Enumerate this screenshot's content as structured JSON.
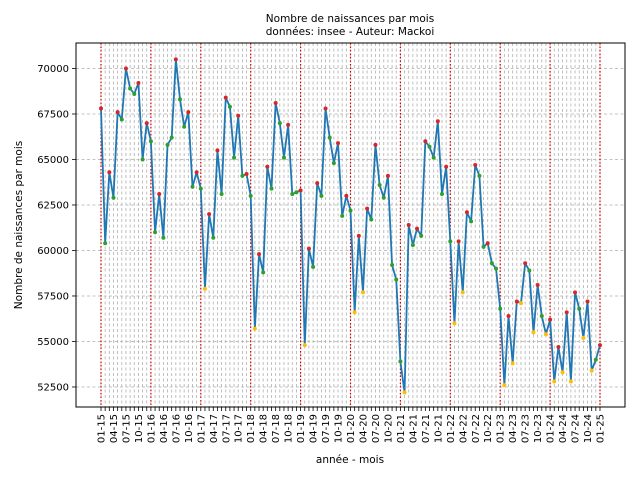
{
  "chart_data": {
    "type": "line",
    "title": "Nombre de naissances par mois",
    "subtitle": "données: insee - Auteur: Mackoi",
    "xlabel": "année - mois",
    "ylabel": "Nombre de naissances par mois",
    "ylim": [
      51400,
      71400
    ],
    "yticks": [
      52500,
      55000,
      57500,
      60000,
      62500,
      65000,
      67500,
      70000
    ],
    "ytick_labels": [
      "52500",
      "55000",
      "57500",
      "60000",
      "62500",
      "65000",
      "67500",
      "70000"
    ],
    "xtick_labels": [
      "01-15",
      "04-15",
      "07-15",
      "10-15",
      "01-16",
      "04-16",
      "07-16",
      "10-16",
      "01-17",
      "04-17",
      "07-17",
      "10-17",
      "01-18",
      "04-18",
      "07-18",
      "10-18",
      "01-19",
      "04-19",
      "07-19",
      "10-19",
      "01-20",
      "04-20",
      "07-20",
      "10-20",
      "01-21",
      "04-21",
      "07-21",
      "10-21",
      "01-22",
      "04-22",
      "07-22",
      "10-22",
      "01-23",
      "04-23",
      "07-23",
      "10-23",
      "01-24",
      "04-24",
      "07-24",
      "10-24",
      "01-25"
    ],
    "grid": true,
    "line_color": "#1f77b4",
    "year_line_color": "#e00000",
    "marker_colors": {
      "high": "#d62728",
      "mid": "#2ca02c",
      "low": "#ffbf00"
    },
    "series": [
      {
        "values": [
          67800,
          60400,
          64300,
          62900,
          67600,
          67200,
          70000,
          68900,
          68600,
          69200,
          65000,
          67000,
          66000,
          61000,
          63100,
          60700,
          65800,
          66200,
          70500,
          68300,
          66800,
          67600,
          63500,
          64300,
          63400,
          57900,
          62000,
          60700,
          65500,
          63100,
          68400,
          67900,
          65100,
          67400,
          64100,
          64200,
          63000,
          55700,
          59800,
          58800,
          64600,
          63400,
          68100,
          67000,
          65100,
          66900,
          63100,
          63200,
          63300,
          54800,
          60100,
          59100,
          63700,
          63000,
          67800,
          66200,
          64800,
          65900,
          61900,
          63000,
          62200,
          56600,
          60800,
          57700,
          62300,
          61700,
          65800,
          63600,
          62900,
          64100,
          59200,
          58400,
          53900,
          52200,
          61400,
          60300,
          61200,
          60800,
          66000,
          65700,
          65100,
          67100,
          63100,
          64600,
          60500,
          56000,
          60500,
          57700,
          62100,
          61600,
          64700,
          64100,
          60200,
          60400,
          59300,
          59000,
          56800,
          52600,
          56400,
          53800,
          57200,
          57100,
          59300,
          58900,
          55500,
          58100,
          56400,
          55400,
          56200,
          52800,
          54700,
          53300,
          56600,
          52800,
          57700,
          56800,
          55200,
          57200,
          53400,
          54000,
          54800
        ]
      }
    ]
  }
}
